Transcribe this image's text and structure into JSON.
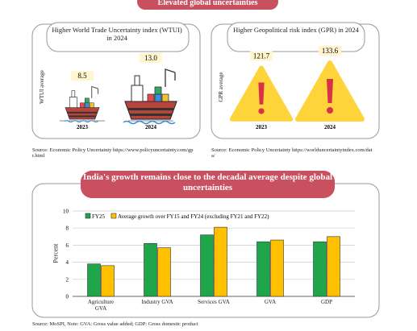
{
  "header": {
    "title": "Elevated global uncertainties"
  },
  "section_title": "India's growth remains close to the decadal average despite global uncertainties",
  "chart_data": [
    {
      "type": "pictogram",
      "icon": "ship",
      "title": "Higher World Trade Uncertainty index (WTUI) in 2024",
      "y_label": "WTUI average",
      "categories": [
        "2023",
        "2024"
      ],
      "values": [
        8.5,
        13.0
      ],
      "value_labels": [
        "8.5",
        "13.0"
      ],
      "source": "Source: Economic Policy Uncertainty https://www.policyuncertainty.com/gpr.html"
    },
    {
      "type": "pictogram",
      "icon": "warning",
      "title": "Higher Geopolitical risk index (GPR) in 2024",
      "y_label": "GPR average",
      "categories": [
        "2023",
        "2024"
      ],
      "values": [
        121.7,
        133.6
      ],
      "source": "Source: Economic Policy Uncertainty https://worlduncertaintyindex.com/data/"
    },
    {
      "type": "bar",
      "y_label": "Percent",
      "categories": [
        "Agriculture GVA",
        "Industry GVA",
        "Services GVA",
        "GVA",
        "GDP"
      ],
      "series": [
        {
          "name": "FY25",
          "color": "#1fa54a",
          "values": [
            3.8,
            6.2,
            7.2,
            6.4,
            6.4
          ]
        },
        {
          "name": "Average growth over FY15 and FY24 (excluding FY21 and FY22)",
          "color": "#ffc000",
          "values": [
            3.6,
            5.7,
            8.1,
            6.6,
            7.0
          ]
        }
      ],
      "ylim": [
        0,
        10
      ],
      "yticks": [
        0,
        2,
        4,
        6,
        8,
        10
      ],
      "grid": true,
      "legend": "top-left"
    }
  ],
  "footer": "Source: MoSPI, Note: GVA: Gross value added; GDP: Gross domestic product"
}
